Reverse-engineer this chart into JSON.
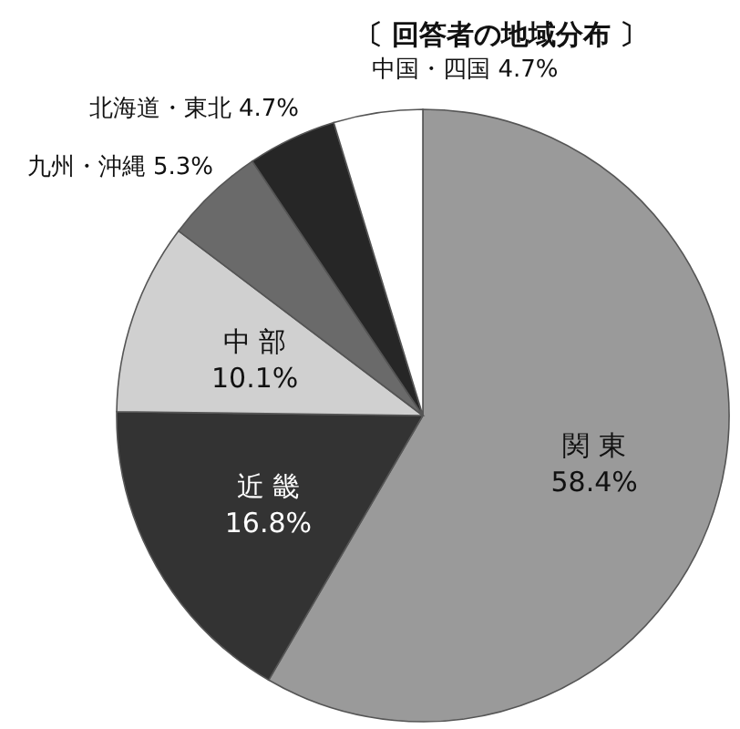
{
  "chart_data": {
    "type": "pie",
    "title": "〔 回答者の地域分布 〕",
    "categories": [
      "関 東",
      "近 畿",
      "中 部",
      "九州・沖縄",
      "北海道・東北",
      "中国・四国"
    ],
    "values": [
      58.4,
      16.8,
      10.1,
      5.3,
      4.7,
      4.7
    ],
    "value_labels": [
      "58.4%",
      "16.8%",
      "10.1%",
      "5.3%",
      "4.7%",
      "4.7%"
    ],
    "colors": [
      "#9a9a9a",
      "#333333",
      "#d0d0d0",
      "#6a6a6a",
      "#262626",
      "#ffffff"
    ]
  }
}
